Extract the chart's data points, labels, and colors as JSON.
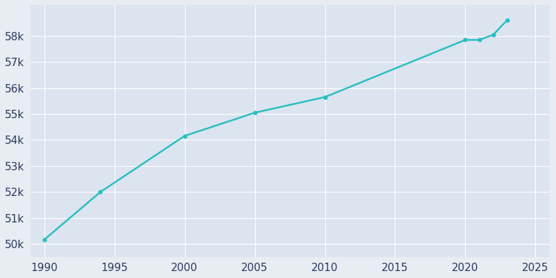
{
  "years": [
    1990,
    1994,
    2000,
    2005,
    2010,
    2020,
    2021,
    2022,
    2023
  ],
  "population": [
    50166,
    52000,
    54157,
    55050,
    55651,
    57850,
    57850,
    58050,
    58620
  ],
  "line_color": "#29bfc0",
  "bg_color": "#e8edf4",
  "plot_bg_color": "#dce4f0",
  "tick_color": "#2a3a5c",
  "grid_color": "#ffffff",
  "xlim": [
    1989,
    2026
  ],
  "ylim": [
    49500,
    59200
  ],
  "yticks": [
    50000,
    51000,
    52000,
    53000,
    54000,
    55000,
    56000,
    57000,
    58000
  ],
  "ytick_labels": [
    "50k",
    "51k",
    "52k",
    "53k",
    "54k",
    "55k",
    "56k",
    "57k",
    "58k"
  ],
  "xticks": [
    1990,
    1995,
    2000,
    2005,
    2010,
    2015,
    2020,
    2025
  ],
  "xtick_labels": [
    "1990",
    "1995",
    "2000",
    "2005",
    "2010",
    "2015",
    "2020",
    "2025"
  ],
  "linewidth": 1.8,
  "marker": "o",
  "markersize": 3.5,
  "tick_fontsize": 11
}
